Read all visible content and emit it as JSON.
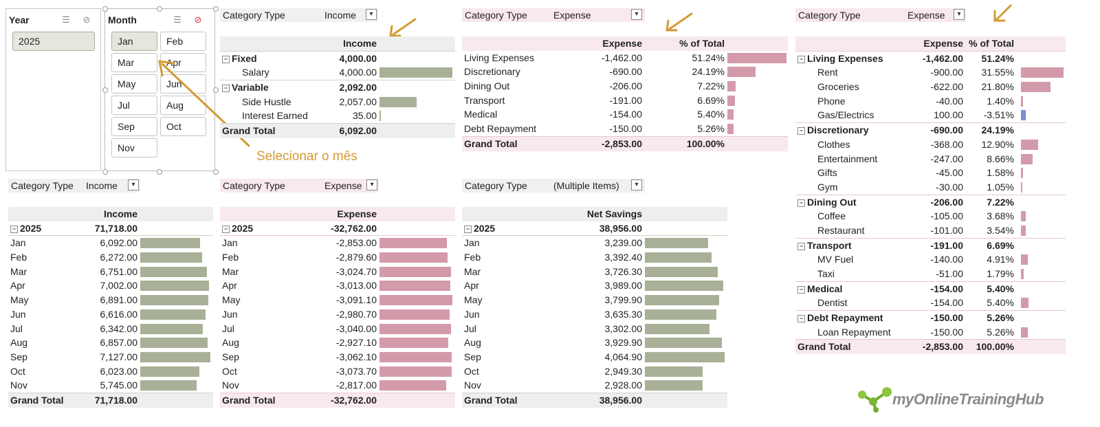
{
  "colors": {
    "income_bar": "#a8b197",
    "expense_bar": "#d39aaa",
    "negative_bar": "#7a8fd0",
    "annotation": "#d49a35"
  },
  "slicer_year": {
    "title": "Year",
    "items": [
      "2025"
    ],
    "selected": "2025"
  },
  "slicer_month": {
    "title": "Month",
    "items": [
      "Jan",
      "Feb",
      "Mar",
      "Apr",
      "May",
      "Jun",
      "Jul",
      "Aug",
      "Sep",
      "Oct",
      "Nov"
    ],
    "selected": "Jan"
  },
  "annotation": "Selecionar o mês",
  "logo": "myOnlineTrainingHub",
  "p1": {
    "filter_label": "Category Type",
    "filter_value": "Income",
    "header": "Income",
    "rows": [
      {
        "label": "Fixed",
        "value": "4,000.00",
        "bold": true,
        "group": true
      },
      {
        "label": "Salary",
        "value": "4,000.00",
        "indent": true,
        "bar": 1.0
      },
      {
        "label": "Variable",
        "value": "2,092.00",
        "bold": true,
        "group": true
      },
      {
        "label": "Side Hustle",
        "value": "2,057.00",
        "indent": true,
        "bar": 0.514
      },
      {
        "label": "Interest Earned",
        "value": "35.00",
        "indent": true,
        "bar": 0.009
      }
    ],
    "total_label": "Grand Total",
    "total_value": "6,092.00"
  },
  "p2": {
    "filter_label": "Category Type",
    "filter_value": "Expense",
    "header1": "Expense",
    "header2": "% of Total",
    "rows": [
      {
        "label": "Living Expenses",
        "value": "-1,462.00",
        "pct": "51.24%",
        "bar": 1.0
      },
      {
        "label": "Discretionary",
        "value": "-690.00",
        "pct": "24.19%",
        "bar": 0.472
      },
      {
        "label": "Dining Out",
        "value": "-206.00",
        "pct": "7.22%",
        "bar": 0.141
      },
      {
        "label": "Transport",
        "value": "-191.00",
        "pct": "6.69%",
        "bar": 0.131
      },
      {
        "label": "Medical",
        "value": "-154.00",
        "pct": "5.40%",
        "bar": 0.105
      },
      {
        "label": "Debt Repayment",
        "value": "-150.00",
        "pct": "5.26%",
        "bar": 0.103
      }
    ],
    "total_label": "Grand Total",
    "total_value": "-2,853.00",
    "total_pct": "100.00%"
  },
  "p3": {
    "filter_label": "Category Type",
    "filter_value": "Expense",
    "header1": "Expense",
    "header2": "% of Total",
    "rows": [
      {
        "label": "Living Expenses",
        "value": "-1,462.00",
        "pct": "51.24%",
        "bold": true,
        "group": true
      },
      {
        "label": "Rent",
        "value": "-900.00",
        "pct": "31.55%",
        "indent": true,
        "bar": 1.0
      },
      {
        "label": "Groceries",
        "value": "-622.00",
        "pct": "21.80%",
        "indent": true,
        "bar": 0.691
      },
      {
        "label": "Phone",
        "value": "-40.00",
        "pct": "1.40%",
        "indent": true,
        "bar": 0.044
      },
      {
        "label": "Gas/Electrics",
        "value": "100.00",
        "pct": "-3.51%",
        "indent": true,
        "bar": 0.111,
        "neg": true
      },
      {
        "label": "Discretionary",
        "value": "-690.00",
        "pct": "24.19%",
        "bold": true,
        "group": true
      },
      {
        "label": "Clothes",
        "value": "-368.00",
        "pct": "12.90%",
        "indent": true,
        "bar": 0.409
      },
      {
        "label": "Entertainment",
        "value": "-247.00",
        "pct": "8.66%",
        "indent": true,
        "bar": 0.274
      },
      {
        "label": "Gifts",
        "value": "-45.00",
        "pct": "1.58%",
        "indent": true,
        "bar": 0.05
      },
      {
        "label": "Gym",
        "value": "-30.00",
        "pct": "1.05%",
        "indent": true,
        "bar": 0.033
      },
      {
        "label": "Dining Out",
        "value": "-206.00",
        "pct": "7.22%",
        "bold": true,
        "group": true
      },
      {
        "label": "Coffee",
        "value": "-105.00",
        "pct": "3.68%",
        "indent": true,
        "bar": 0.117
      },
      {
        "label": "Restaurant",
        "value": "-101.00",
        "pct": "3.54%",
        "indent": true,
        "bar": 0.112
      },
      {
        "label": "Transport",
        "value": "-191.00",
        "pct": "6.69%",
        "bold": true,
        "group": true
      },
      {
        "label": "MV Fuel",
        "value": "-140.00",
        "pct": "4.91%",
        "indent": true,
        "bar": 0.156
      },
      {
        "label": "Taxi",
        "value": "-51.00",
        "pct": "1.79%",
        "indent": true,
        "bar": 0.057
      },
      {
        "label": "Medical",
        "value": "-154.00",
        "pct": "5.40%",
        "bold": true,
        "group": true
      },
      {
        "label": "Dentist",
        "value": "-154.00",
        "pct": "5.40%",
        "indent": true,
        "bar": 0.171
      },
      {
        "label": "Debt Repayment",
        "value": "-150.00",
        "pct": "5.26%",
        "bold": true,
        "group": true
      },
      {
        "label": "Loan Repayment",
        "value": "-150.00",
        "pct": "5.26%",
        "indent": true,
        "bar": 0.167
      }
    ],
    "total_label": "Grand Total",
    "total_value": "-2,853.00",
    "total_pct": "100.00%"
  },
  "p4": {
    "filter_label": "Category Type",
    "filter_value": "Income",
    "header": "Income",
    "year_label": "2025",
    "year_value": "71,718.00",
    "rows": [
      {
        "label": "Jan",
        "value": "6,092.00",
        "bar": 0.855
      },
      {
        "label": "Feb",
        "value": "6,272.00",
        "bar": 0.88
      },
      {
        "label": "Mar",
        "value": "6,751.00",
        "bar": 0.947
      },
      {
        "label": "Apr",
        "value": "7,002.00",
        "bar": 0.982
      },
      {
        "label": "May",
        "value": "6,891.00",
        "bar": 0.967
      },
      {
        "label": "Jun",
        "value": "6,616.00",
        "bar": 0.928
      },
      {
        "label": "Jul",
        "value": "6,342.00",
        "bar": 0.89
      },
      {
        "label": "Aug",
        "value": "6,857.00",
        "bar": 0.962
      },
      {
        "label": "Sep",
        "value": "7,127.00",
        "bar": 1.0
      },
      {
        "label": "Oct",
        "value": "6,023.00",
        "bar": 0.845
      },
      {
        "label": "Nov",
        "value": "5,745.00",
        "bar": 0.806
      }
    ],
    "total_label": "Grand Total",
    "total_value": "71,718.00"
  },
  "p5": {
    "filter_label": "Category Type",
    "filter_value": "Expense",
    "header": "Expense",
    "year_label": "2025",
    "year_value": "-32,762.00",
    "rows": [
      {
        "label": "Jan",
        "value": "-2,853.00",
        "bar": 0.923
      },
      {
        "label": "Feb",
        "value": "-2,879.60",
        "bar": 0.932
      },
      {
        "label": "Mar",
        "value": "-3,024.70",
        "bar": 0.979
      },
      {
        "label": "Apr",
        "value": "-3,013.00",
        "bar": 0.975
      },
      {
        "label": "May",
        "value": "-3,091.10",
        "bar": 1.0
      },
      {
        "label": "Jun",
        "value": "-2,980.70",
        "bar": 0.964
      },
      {
        "label": "Jul",
        "value": "-3,040.00",
        "bar": 0.983
      },
      {
        "label": "Aug",
        "value": "-2,927.10",
        "bar": 0.947
      },
      {
        "label": "Sep",
        "value": "-3,062.10",
        "bar": 0.991
      },
      {
        "label": "Oct",
        "value": "-3,073.70",
        "bar": 0.994
      },
      {
        "label": "Nov",
        "value": "-2,817.00",
        "bar": 0.911
      }
    ],
    "total_label": "Grand Total",
    "total_value": "-32,762.00"
  },
  "p6": {
    "filter_label": "Category Type",
    "filter_value": "(Multiple Items)",
    "header": "Net Savings",
    "year_label": "2025",
    "year_value": "38,956.00",
    "rows": [
      {
        "label": "Jan",
        "value": "3,239.00",
        "bar": 0.797
      },
      {
        "label": "Feb",
        "value": "3,392.40",
        "bar": 0.835
      },
      {
        "label": "Mar",
        "value": "3,726.30",
        "bar": 0.917
      },
      {
        "label": "Apr",
        "value": "3,989.00",
        "bar": 0.981
      },
      {
        "label": "May",
        "value": "3,799.90",
        "bar": 0.935
      },
      {
        "label": "Jun",
        "value": "3,635.30",
        "bar": 0.894
      },
      {
        "label": "Jul",
        "value": "3,302.00",
        "bar": 0.812
      },
      {
        "label": "Aug",
        "value": "3,929.90",
        "bar": 0.967
      },
      {
        "label": "Sep",
        "value": "4,064.90",
        "bar": 1.0
      },
      {
        "label": "Oct",
        "value": "2,949.30",
        "bar": 0.726
      },
      {
        "label": "Nov",
        "value": "2,928.00",
        "bar": 0.72
      }
    ],
    "total_label": "Grand Total",
    "total_value": "38,956.00"
  }
}
